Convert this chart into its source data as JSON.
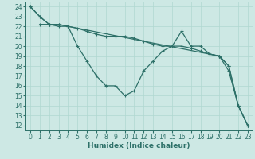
{
  "series": [
    {
      "x": [
        0,
        1,
        2,
        3,
        4,
        5,
        6,
        7,
        8,
        9,
        10,
        11,
        12,
        13,
        14,
        15,
        16,
        17,
        18,
        19,
        20,
        21,
        22,
        23
      ],
      "y": [
        24,
        23,
        22.2,
        22.2,
        22,
        21.8,
        21.5,
        21.2,
        21,
        21,
        21,
        20.8,
        20.5,
        20.2,
        20,
        20,
        20,
        19.8,
        19.5,
        19.2,
        19,
        18,
        14,
        12
      ]
    },
    {
      "x": [
        1,
        2,
        3,
        4,
        5,
        6,
        7,
        8,
        9,
        10,
        11,
        12,
        13,
        14,
        15,
        16,
        17,
        18,
        19,
        20,
        21,
        22,
        23
      ],
      "y": [
        22.2,
        22.2,
        22,
        22,
        20,
        18.5,
        17,
        16,
        16,
        15,
        15.5,
        17.5,
        18.5,
        19.5,
        20,
        21.5,
        20,
        20,
        19.2,
        19,
        17.5,
        14,
        12
      ]
    },
    {
      "x": [
        0,
        1,
        2,
        3,
        4,
        20,
        21,
        22,
        23
      ],
      "y": [
        24,
        23,
        22.2,
        22.2,
        22,
        19,
        18,
        14,
        12
      ]
    }
  ],
  "xlabel": "Humidex (Indice chaleur)",
  "xlim": [
    -0.5,
    23.5
  ],
  "ylim": [
    11.5,
    24.5
  ],
  "yticks": [
    12,
    13,
    14,
    15,
    16,
    17,
    18,
    19,
    20,
    21,
    22,
    23,
    24
  ],
  "xticks": [
    0,
    1,
    2,
    3,
    4,
    5,
    6,
    7,
    8,
    9,
    10,
    11,
    12,
    13,
    14,
    15,
    16,
    17,
    18,
    19,
    20,
    21,
    22,
    23
  ],
  "bg_color": "#cde8e4",
  "grid_color": "#b0d8d0",
  "line_color": "#2d7068",
  "label_fontsize": 6.5,
  "tick_fontsize": 5.5
}
